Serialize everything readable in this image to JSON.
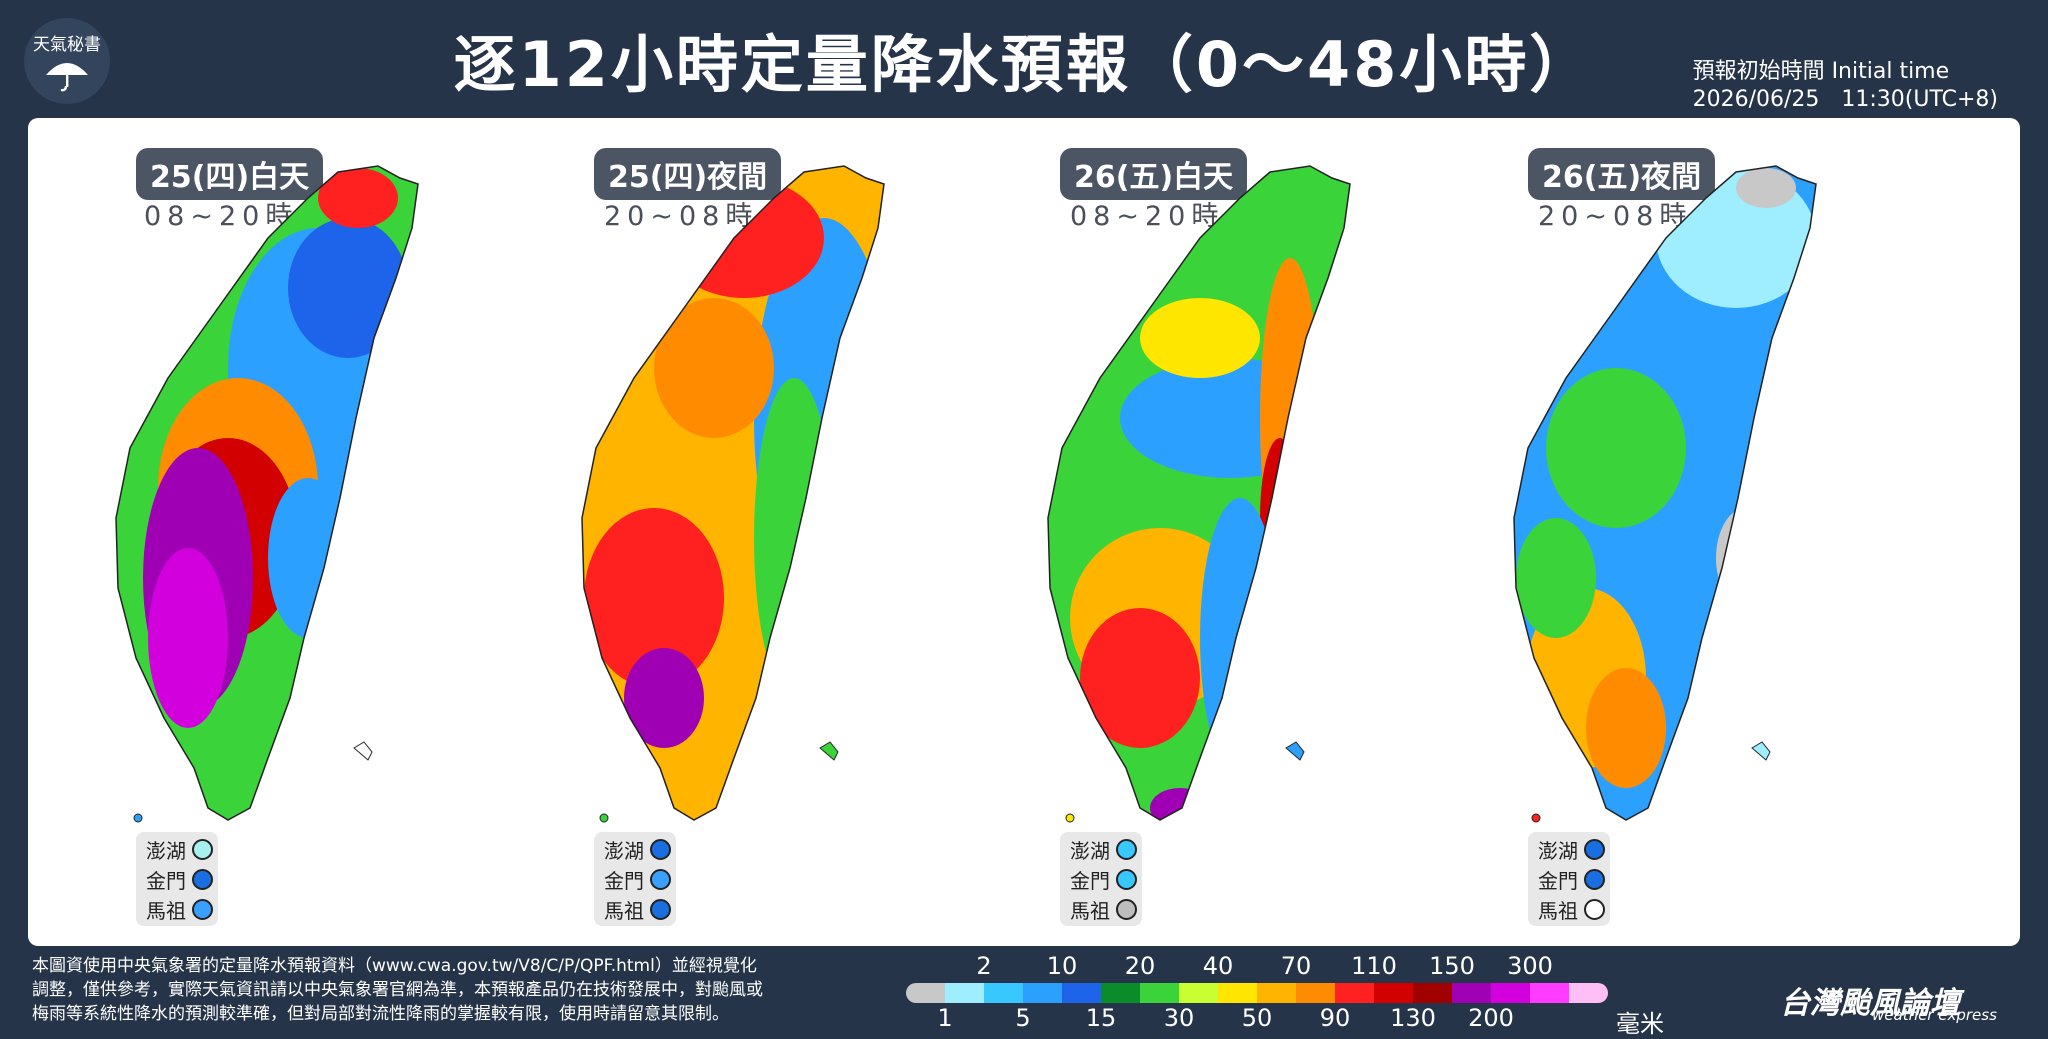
{
  "header": {
    "logo_text": "天氣秘書",
    "title": "逐12小時定量降水預報（0～48小時）",
    "initial_time_label": "預報初始時間 Initial time",
    "initial_time_value": "2026/06/25　11:30(UTC+8)"
  },
  "island_names": [
    "澎湖",
    "金門",
    "馬祖"
  ],
  "panels": [
    {
      "day": "25(四)白天",
      "hours": "08~20時",
      "islands": [
        "#a8f0f0",
        "#1a6fe0",
        "#3aa0ff"
      ]
    },
    {
      "day": "25(四)夜間",
      "hours": "20~08時",
      "islands": [
        "#1a6fe0",
        "#3aa0ff",
        "#1a6fe0"
      ]
    },
    {
      "day": "26(五)白天",
      "hours": "08~20時",
      "islands": [
        "#38c8ff",
        "#38c8ff",
        "#bdbdbd"
      ]
    },
    {
      "day": "26(五)夜間",
      "hours": "20~08時",
      "islands": [
        "#1a6fe0",
        "#1a6fe0",
        "#ffffff"
      ]
    }
  ],
  "legend": {
    "colors": [
      "#c8c8c8",
      "#9eeeff",
      "#38c8ff",
      "#2ca0ff",
      "#1e64ea",
      "#0a8c2a",
      "#3ad43a",
      "#c8ff32",
      "#ffe600",
      "#ffb400",
      "#ff8c00",
      "#ff2020",
      "#d20000",
      "#a00000",
      "#a000b4",
      "#d200dc",
      "#ff3cff",
      "#ffbef5"
    ],
    "top_labels": [
      "2",
      "10",
      "20",
      "40",
      "70",
      "110",
      "150",
      "300"
    ],
    "bottom_labels": [
      "1",
      "5",
      "15",
      "30",
      "50",
      "90",
      "130",
      "200"
    ],
    "unit": "毫米"
  },
  "footer": {
    "note_line1": "本圖資使用中央氣象署的定量降水預報資料（www.cwa.gov.tw/V8/C/P/QPF.html）並經視覺化",
    "note_line2": "調整，僅供參考，實際天氣資訊請以中央氣象署官網為準，本預報產品仍在技術發展中，對颱風或",
    "note_line3": "梅雨等系統性降水的預測較準確，但對局部對流性降雨的掌握較有限，使用時請留意其限制。",
    "brand": "台灣颱風論壇",
    "brand_sub": "weather express"
  }
}
